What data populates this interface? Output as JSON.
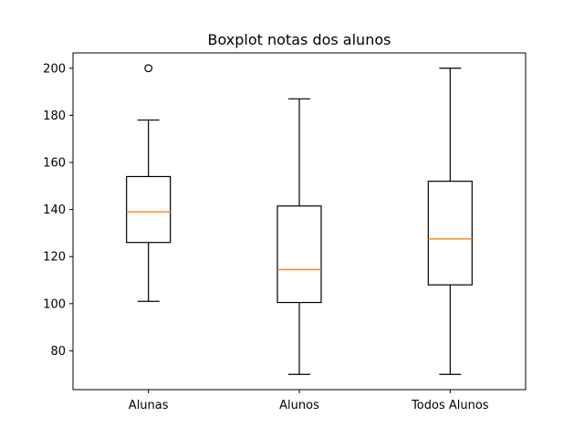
{
  "chart_data": {
    "type": "boxplot",
    "title": "Boxplot notas dos alunos",
    "xlabel": "",
    "ylabel": "",
    "ylim": [
      63.5,
      206.5
    ],
    "yticks": [
      80,
      100,
      120,
      140,
      160,
      180,
      200
    ],
    "categories": [
      "Alunas",
      "Alunos",
      "Todos Alunos"
    ],
    "boxes": [
      {
        "category": "Alunas",
        "whisker_low": 101,
        "q1": 126,
        "median": 139,
        "q3": 154,
        "whisker_high": 178,
        "outliers": [
          200
        ]
      },
      {
        "category": "Alunos",
        "whisker_low": 70,
        "q1": 100.5,
        "median": 114.5,
        "q3": 141.5,
        "whisker_high": 187,
        "outliers": []
      },
      {
        "category": "Todos Alunos",
        "whisker_low": 70,
        "q1": 108,
        "median": 127.5,
        "q3": 152,
        "whisker_high": 200,
        "outliers": []
      }
    ],
    "grid": false,
    "colors": {
      "box": "#000000",
      "median": "#ff7f0e",
      "background": "#ffffff"
    }
  }
}
